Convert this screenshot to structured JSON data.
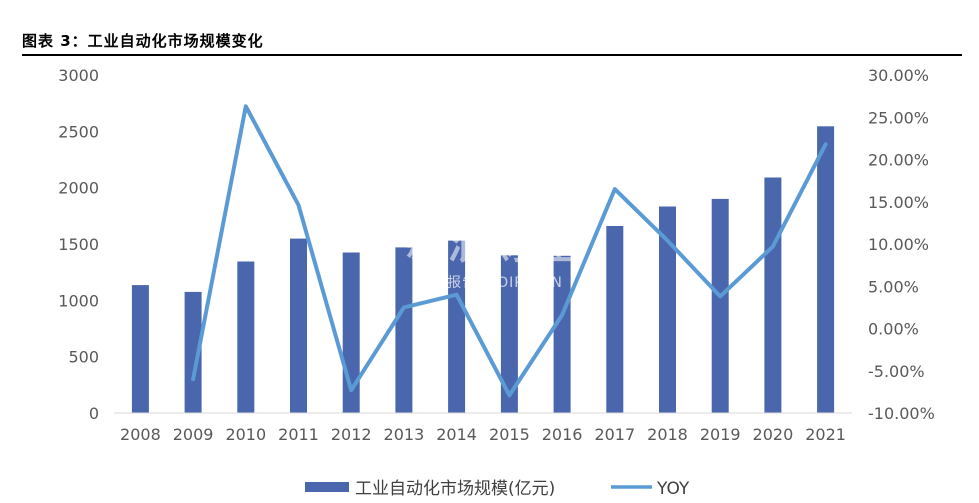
{
  "figure": {
    "title": "图表 3：工业自动化市场规模变化"
  },
  "watermark": {
    "main": "新浪财经",
    "sub": "行业报告 IPOIPO.CN"
  },
  "colors": {
    "bar": "#4a66ad",
    "line": "#5b9bd5",
    "rule": "#000000"
  },
  "chart_data": {
    "type": "bar",
    "categories": [
      "2008",
      "2009",
      "2010",
      "2011",
      "2012",
      "2013",
      "2014",
      "2015",
      "2016",
      "2017",
      "2018",
      "2019",
      "2020",
      "2021"
    ],
    "series": [
      {
        "name": "工业自动化市场规模(亿元)",
        "type": "bar",
        "axis": "left",
        "values": [
          1135,
          1075,
          1345,
          1548,
          1425,
          1470,
          1530,
          1400,
          1395,
          1660,
          1833,
          1900,
          2090,
          2545
        ]
      },
      {
        "name": "YOY",
        "type": "line",
        "axis": "right",
        "values": [
          null,
          -6.0,
          26.3,
          14.6,
          -7.3,
          2.5,
          4.0,
          -7.9,
          1.6,
          16.5,
          10.4,
          3.8,
          9.7,
          21.8
        ]
      }
    ],
    "y_left": {
      "min": 0,
      "max": 3000,
      "ticks": [
        0,
        500,
        1000,
        1500,
        2000,
        2500,
        3000
      ],
      "tick_labels": [
        "0",
        "500",
        "1000",
        "1500",
        "2000",
        "2500",
        "3000"
      ]
    },
    "y_right": {
      "min": -10,
      "max": 30,
      "ticks": [
        -10,
        -5,
        0,
        5,
        10,
        15,
        20,
        25,
        30
      ],
      "tick_labels": [
        "-10.00%",
        "-5.00%",
        "0.00%",
        "5.00%",
        "10.00%",
        "15.00%",
        "20.00%",
        "25.00%",
        "30.00%"
      ]
    },
    "grid": false,
    "legend_position": "bottom"
  }
}
